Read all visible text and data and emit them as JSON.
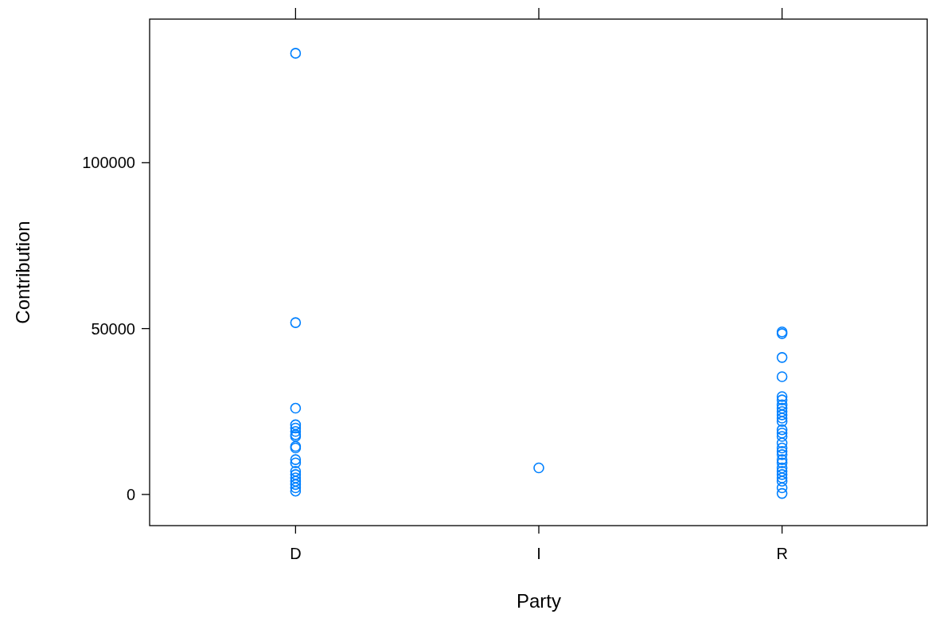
{
  "chart_data": {
    "type": "scatter",
    "xlabel": "Party",
    "ylabel": "Contribution",
    "categories": [
      "D",
      "I",
      "R"
    ],
    "ylim": [
      -9400,
      143300
    ],
    "yticks": [
      0,
      50000,
      100000
    ],
    "grid": false,
    "marker": "circle",
    "series": [
      {
        "color": "#0080ff",
        "x": [
          "D",
          "D",
          "D",
          "D",
          "D",
          "D",
          "D",
          "D",
          "D",
          "D",
          "D",
          "D",
          "D",
          "D",
          "D",
          "D",
          "D",
          "D",
          "D",
          "I",
          "R",
          "R",
          "R",
          "R",
          "R",
          "R",
          "R",
          "R",
          "R",
          "R",
          "R",
          "R",
          "R",
          "R",
          "R",
          "R",
          "R",
          "R",
          "R",
          "R",
          "R",
          "R",
          "R",
          "R",
          "R",
          "R",
          "R",
          "R"
        ],
        "values": [
          133000,
          51800,
          26000,
          21000,
          20000,
          19000,
          18000,
          17500,
          14500,
          14000,
          10500,
          9500,
          7000,
          6000,
          5000,
          4000,
          3000,
          2000,
          1000,
          8000,
          49000,
          48500,
          41300,
          35500,
          29500,
          28500,
          27000,
          26000,
          25000,
          24000,
          23000,
          22000,
          19500,
          18500,
          17500,
          15500,
          14000,
          13000,
          12000,
          10500,
          9500,
          8000,
          7000,
          6000,
          5000,
          4000,
          2000,
          300
        ]
      }
    ]
  }
}
